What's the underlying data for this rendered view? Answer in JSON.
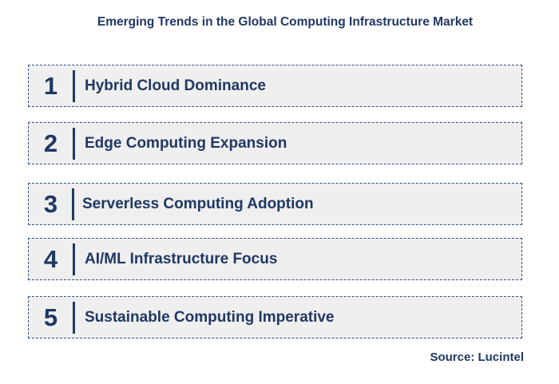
{
  "title": "Emerging Trends in the Global Computing Infrastructure Market",
  "trends": [
    {
      "number": "1",
      "label": "Hybrid Cloud Dominance"
    },
    {
      "number": "2",
      "label": "Edge Computing Expansion"
    },
    {
      "number": "3",
      "label": "Serverless Computing Adoption"
    },
    {
      "number": "4",
      "label": "AI/ML Infrastructure Focus"
    },
    {
      "number": "5",
      "label": "Sustainable Computing Imperative"
    }
  ],
  "source": "Source: Lucintel",
  "colors": {
    "text": "#1f3864",
    "row_background": "#efefef",
    "border": "#2f4f8f"
  }
}
